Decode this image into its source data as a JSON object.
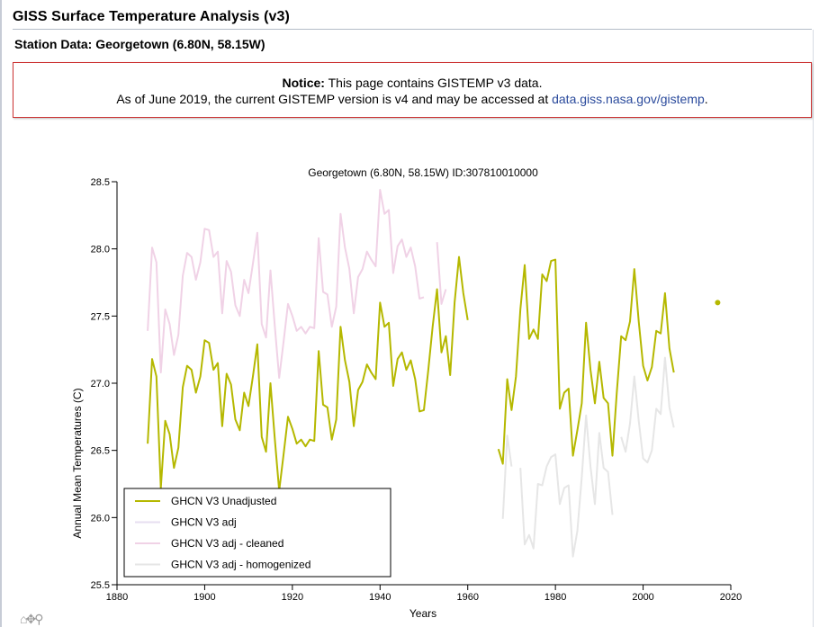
{
  "header": {
    "title": "GISS Surface Temperature Analysis (v3)"
  },
  "page": {
    "heading": "Station Data: Georgetown (6.80N, 58.15W)"
  },
  "notice": {
    "label": "Notice:",
    "text1": " This page contains GISTEMP v3 data.",
    "text2": "As of June 2019, the current GISTEMP version is v4 and may be accessed at ",
    "link": "data.giss.nasa.gov/gistemp",
    "text3": "."
  },
  "colors": {
    "unadjusted": "#b5b800",
    "adj": "#e7dff0",
    "cleaned": "#f0d2e6",
    "homogenized": "#e6e6e6",
    "notice_border": "#cc3333",
    "link": "#2a4a9c"
  },
  "toolbar": {
    "icons": [
      "home-icon",
      "move-icon",
      "zoom-icon"
    ]
  },
  "chart_data": {
    "type": "line",
    "title": "Georgetown (6.80N, 58.15W) ID:307810010000",
    "xlabel": "Years",
    "ylabel": "Annual Mean Temperatures (C)",
    "xlim": [
      1880,
      2020
    ],
    "ylim": [
      25.5,
      28.5
    ],
    "xticks": [
      1880,
      1900,
      1920,
      1940,
      1960,
      1980,
      2000,
      2020
    ],
    "yticks": [
      "25.5",
      "26.0",
      "26.5",
      "27.0",
      "27.5",
      "28.0",
      "28.5"
    ],
    "legend_position": "lower-left",
    "series": [
      {
        "name": "GHCN V3 Unadjusted",
        "color": "#b5b800",
        "x": [
          1887,
          1888,
          1889,
          1890,
          1891,
          1892,
          1893,
          1894,
          1895,
          1896,
          1897,
          1898,
          1899,
          1900,
          1901,
          1902,
          1903,
          1904,
          1905,
          1906,
          1907,
          1908,
          1909,
          1910,
          1911,
          1912,
          1913,
          1914,
          1915,
          1916,
          1917,
          1918,
          1919,
          1920,
          1921,
          1922,
          1923,
          1924,
          1925,
          1926,
          1927,
          1928,
          1929,
          1930,
          1931,
          1932,
          1933,
          1934,
          1935,
          1936,
          1937,
          1938,
          1939,
          1940,
          1941,
          1942,
          1943,
          1944,
          1945,
          1946,
          1947,
          1948,
          1949,
          1950,
          1951,
          1952,
          1953,
          1954,
          1955,
          1956,
          1957,
          1958,
          1959,
          1960,
          null,
          1967,
          1968,
          1969,
          1970,
          1971,
          1972,
          1973,
          1974,
          1975,
          1976,
          1977,
          1978,
          1979,
          1980,
          1981,
          1982,
          1983,
          1984,
          1985,
          1986,
          1987,
          1988,
          1989,
          1990,
          1991,
          1992,
          1993,
          1994,
          1995,
          1996,
          1997,
          1998,
          1999,
          2000,
          2001,
          2002,
          2003,
          2004,
          2005,
          2006,
          2007,
          null,
          2017
        ],
        "y": [
          26.55,
          27.18,
          27.05,
          26.22,
          26.72,
          26.62,
          26.37,
          26.52,
          26.97,
          27.13,
          27.1,
          26.93,
          27.05,
          27.32,
          27.3,
          27.1,
          27.15,
          26.68,
          27.07,
          26.99,
          26.73,
          26.65,
          26.93,
          26.83,
          27.05,
          27.29,
          26.6,
          26.49,
          27.0,
          26.58,
          26.2,
          26.47,
          26.75,
          26.66,
          26.55,
          26.58,
          26.53,
          26.58,
          26.57,
          27.24,
          26.84,
          26.82,
          26.58,
          26.73,
          27.42,
          27.17,
          27.01,
          26.68,
          26.95,
          27.01,
          27.14,
          27.08,
          27.03,
          27.6,
          27.42,
          27.45,
          26.98,
          27.18,
          27.23,
          27.1,
          27.17,
          27.03,
          26.79,
          26.8,
          27.1,
          27.42,
          27.7,
          27.23,
          27.35,
          27.06,
          27.6,
          27.94,
          27.67,
          27.47,
          null,
          26.51,
          26.4,
          27.03,
          26.8,
          27.05,
          27.55,
          27.88,
          27.33,
          27.4,
          27.33,
          27.81,
          27.76,
          27.91,
          27.92,
          26.81,
          26.93,
          26.96,
          26.46,
          26.65,
          26.85,
          27.45,
          27.1,
          26.85,
          27.16,
          26.89,
          26.85,
          26.46,
          26.93,
          27.35,
          27.32,
          27.46,
          27.85,
          27.46,
          27.13,
          27.02,
          27.12,
          27.39,
          27.37,
          27.67,
          27.26,
          27.08,
          null,
          27.6
        ]
      },
      {
        "name": "GHCN V3 adj",
        "color": "#e7dff0",
        "x": [],
        "y": []
      },
      {
        "name": "GHCN V3 adj - cleaned",
        "color": "#f0d2e6",
        "x": [
          1887,
          1888,
          1889,
          1890,
          1891,
          1892,
          1893,
          1894,
          1895,
          1896,
          1897,
          1898,
          1899,
          1900,
          1901,
          1902,
          1903,
          1904,
          1905,
          1906,
          1907,
          1908,
          1909,
          1910,
          1911,
          1912,
          1913,
          1914,
          1915,
          1916,
          1917,
          1918,
          1919,
          1920,
          1921,
          1922,
          1923,
          1924,
          1925,
          1926,
          1927,
          1928,
          1929,
          1930,
          1931,
          1932,
          1933,
          1934,
          1935,
          1936,
          1937,
          1938,
          1939,
          1940,
          1941,
          1942,
          1943,
          1944,
          1945,
          1946,
          1947,
          1948,
          1949,
          1950,
          null,
          1953,
          1954,
          1955
        ],
        "y": [
          27.39,
          28.01,
          27.9,
          27.08,
          27.55,
          27.44,
          27.21,
          27.36,
          27.8,
          27.97,
          27.94,
          27.77,
          27.9,
          28.15,
          28.14,
          27.94,
          27.98,
          27.52,
          27.91,
          27.83,
          27.58,
          27.5,
          27.77,
          27.67,
          27.89,
          28.12,
          27.44,
          27.34,
          27.84,
          27.42,
          27.04,
          27.31,
          27.59,
          27.5,
          27.39,
          27.42,
          27.37,
          27.42,
          27.41,
          28.08,
          27.68,
          27.66,
          27.42,
          27.57,
          28.26,
          28.01,
          27.85,
          27.52,
          27.79,
          27.85,
          27.98,
          27.92,
          27.87,
          28.44,
          28.26,
          28.29,
          27.82,
          28.02,
          28.07,
          27.94,
          28.01,
          27.87,
          27.63,
          27.64,
          null,
          28.05,
          27.59,
          27.7
        ]
      },
      {
        "name": "GHCN V3 adj - homogenized",
        "color": "#e6e6e6",
        "x": [
          1968,
          1969,
          1970,
          null,
          1972,
          1973,
          1974,
          1975,
          1976,
          1977,
          1978,
          1979,
          1980,
          1981,
          1982,
          1983,
          1984,
          1985,
          1986,
          1987,
          1988,
          1989,
          1990,
          1991,
          1992,
          1993,
          null,
          1995,
          1996,
          1997,
          1998,
          1999,
          2000,
          2001,
          2002,
          2003,
          2004,
          2005,
          2006,
          2007
        ],
        "y": [
          25.99,
          26.61,
          26.38,
          null,
          26.37,
          25.8,
          25.87,
          25.77,
          26.25,
          26.24,
          26.38,
          26.45,
          26.47,
          26.1,
          26.22,
          26.24,
          25.71,
          25.9,
          26.3,
          26.76,
          26.38,
          26.1,
          26.63,
          26.37,
          26.34,
          26.02,
          null,
          26.6,
          26.49,
          26.7,
          27.05,
          26.72,
          26.44,
          26.41,
          26.5,
          26.81,
          26.77,
          27.19,
          26.82,
          26.67
        ]
      }
    ]
  }
}
